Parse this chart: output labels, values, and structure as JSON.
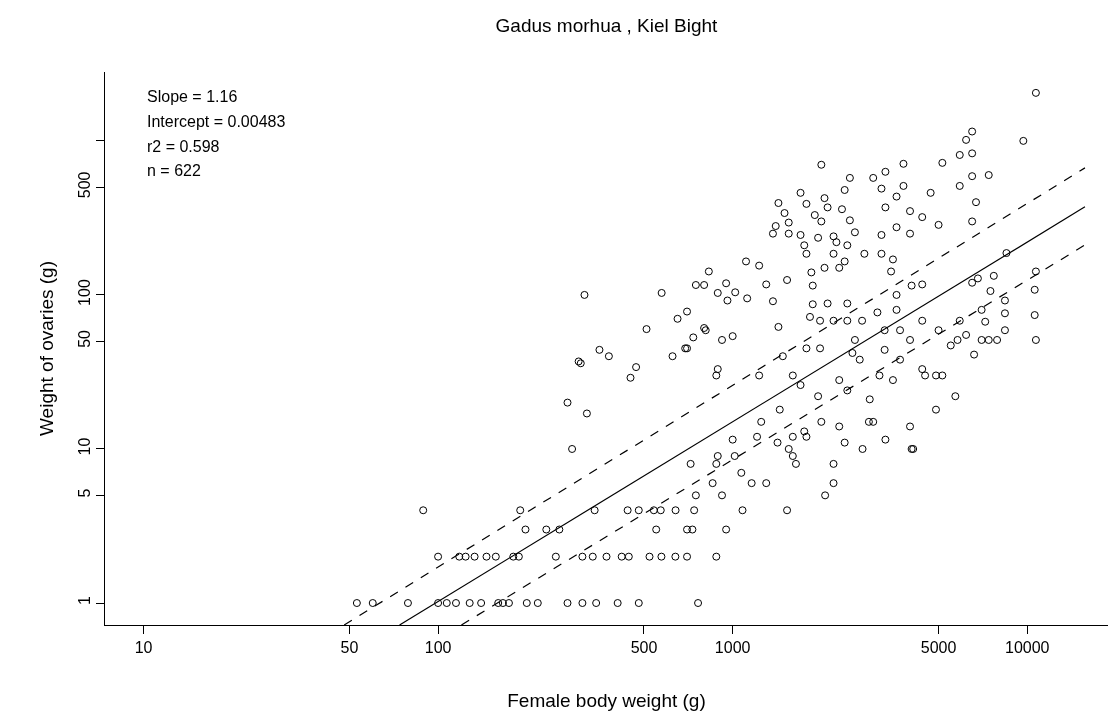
{
  "chart_data": {
    "type": "scatter",
    "title": "Gadus morhua , Kiel Bight",
    "xlabel": "Female body weight (g)",
    "ylabel": "Weight of ovaries (g)",
    "log": "xy",
    "grid": false,
    "xlim": [
      7.4,
      18800
    ],
    "ylim": [
      0.72,
      2800
    ],
    "xticks": [
      10,
      50,
      100,
      500,
      1000,
      5000,
      10000
    ],
    "yticks": [
      1,
      5,
      10,
      50,
      100,
      500,
      {
        "value": 1000,
        "label": null
      }
    ],
    "annotations": [
      "Slope = 1.16",
      "Intercept = 0.00483",
      "r2 = 0.598",
      "n = 622"
    ],
    "series": [
      {
        "marker": "circle",
        "color": "#000000",
        "x": [
          53,
          60,
          79,
          100,
          107,
          115,
          128,
          140,
          160,
          166,
          174,
          200,
          218,
          275,
          309,
          344,
          407,
          480,
          763,
          100,
          118,
          124,
          133,
          146,
          157,
          180,
          188,
          251,
          309,
          335,
          373,
          420,
          444,
          522,
          573,
          639,
          700,
          880,
          198,
          233,
          258,
          550,
          700,
          730,
          950,
          89,
          190,
          340,
          440,
          480,
          540,
          570,
          640,
          740,
          1080,
          1530,
          750,
          920,
          2060,
          855,
          1160,
          1300,
          2200,
          1070,
          720,
          880,
          1640,
          2200,
          890,
          1016,
          1600,
          285,
          2760,
          4050,
          1550,
          4100,
          1000,
          1420,
          3300,
          2400,
          1210,
          1600,
          1780,
          1750,
          2300,
          4000,
          2000,
          3000,
          1250,
          2900,
          1445,
          4900,
          320,
          275,
          2920,
          1950,
          5700,
          2450,
          1700,
          2300,
          3500,
          450,
          880,
          1230,
          1600,
          4900,
          3150,
          4500,
          5150,
          890,
          4400,
          305,
          470,
          300,
          2700,
          3700,
          380,
          625,
          1480,
          6600,
          2550,
          353,
          3280,
          690,
          700,
          1780,
          1980,
          5500,
          4000,
          920,
          7000,
          7900,
          10700,
          5800,
          7400,
          2600,
          735,
          1000,
          5900,
          5000,
          810,
          3280,
          3700,
          8400,
          510,
          800,
          1430,
          6200,
          650,
          4400,
          1980,
          2200,
          2450,
          2750,
          1830,
          7200,
          10600,
          3100,
          700,
          8400,
          7000,
          3600,
          1870,
          2100,
          2450,
          1370,
          960,
          8400,
          314,
          574,
          1120,
          890,
          3600,
          1020,
          7500,
          10600,
          1870,
          750,
          800,
          4050,
          4400,
          1300,
          950,
          6500,
          1530,
          6800,
          7700,
          830,
          1850,
          3450,
          10700,
          1230,
          1110,
          2050,
          2300,
          2400,
          3500,
          3200,
          2800,
          1780,
          2200,
          8500,
          1750,
          2450,
          2250,
          1950,
          2200,
          1700,
          3200,
          1370,
          1550,
          4000,
          2600,
          1400,
          3600,
          5000,
          1550,
          2000,
          6500,
          2500,
          4400,
          1900,
          1500,
          4000,
          2350,
          2100,
          3300,
          1780,
          1430,
          6700,
          2050,
          3600,
          1700,
          4700,
          2400,
          3200,
          3800,
          5900,
          2500,
          3000,
          6500,
          7400,
          3300,
          2000,
          3800,
          5150,
          5900,
          6500,
          6200,
          9700,
          6500,
          10700
        ],
        "values": [
          1,
          1,
          1,
          1,
          1,
          1,
          1,
          1,
          1,
          1,
          1,
          1,
          1,
          1,
          1,
          1,
          1,
          1,
          1,
          2,
          2,
          2,
          2,
          2,
          2,
          2,
          2,
          2,
          2,
          2,
          2,
          2,
          2,
          2,
          2,
          2,
          2,
          2,
          3,
          3,
          3,
          3,
          3,
          3,
          3,
          4,
          4,
          4,
          4,
          4,
          4,
          4,
          4,
          4,
          4,
          4,
          5,
          5,
          5,
          6,
          6,
          6,
          6,
          7,
          8,
          8,
          8,
          8,
          9,
          9,
          9,
          10,
          10,
          10,
          10,
          10,
          11.5,
          11,
          11.5,
          11,
          12,
          12,
          12,
          13,
          14,
          14,
          15,
          15,
          15,
          15,
          18,
          18,
          17,
          20,
          21,
          22,
          22,
          24,
          26,
          28,
          28,
          29,
          30,
          30,
          30,
          30,
          30,
          30,
          30,
          33,
          33,
          36,
          34,
          37,
          38,
          38,
          40,
          40,
          40,
          41,
          42,
          44,
          44,
          45,
          45,
          45,
          45,
          47,
          51,
          51,
          51,
          51,
          51,
          51,
          51,
          51,
          53,
          54,
          68,
          59,
          59,
          59,
          59,
          59,
          60,
          61,
          62,
          55,
          70,
          68,
          68,
          68,
          68,
          68,
          72,
          67,
          74,
          77,
          78,
          76,
          80,
          80,
          87,
          88,
          88,
          91,
          92,
          92,
          100,
          103,
          95,
          103,
          100,
          104,
          106,
          108,
          115,
          116,
          116,
          115,
          117,
          117,
          119,
          120,
          125,
          128,
          133,
          142,
          140,
          142,
          142,
          155,
          165,
          150,
          150,
          165,
          170,
          185,
          185,
          185,
          185,
          187,
          210,
          210,
          220,
          235,
          240,
          245,
          245,
          250,
          250,
          250,
          255,
          280,
          275,
          285,
          295,
          300,
          300,
          305,
          320,
          330,
          340,
          350,
          360,
          370,
          370,
          390,
          395,
          400,
          425,
          435,
          460,
          460,
          480,
          490,
          510,
          510,
          575,
          575,
          590,
          600,
          630,
          700,
          710,
          720,
          810,
          830,
          1015,
          1000,
          1150,
          2050
        ]
      },
      {
        "type": "line",
        "color": "#000000",
        "line_style": "solid",
        "x": [
          74,
          15700
        ],
        "values": [
          0.72,
          373
        ]
      },
      {
        "type": "line",
        "color": "#000000",
        "line_style": "dashed",
        "x": [
          48,
          15700
        ],
        "values": [
          0.72,
          668
        ]
      },
      {
        "type": "line",
        "color": "#000000",
        "line_style": "dashed",
        "x": [
          120,
          15700
        ],
        "values": [
          0.72,
          211
        ]
      }
    ]
  }
}
